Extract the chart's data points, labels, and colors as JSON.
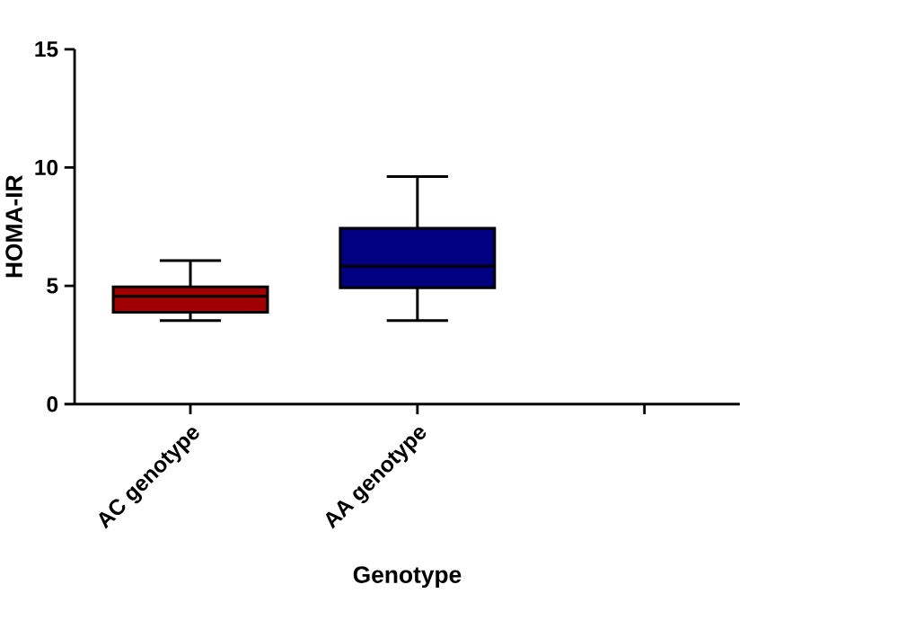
{
  "chart_data": {
    "type": "box",
    "xlabel": "Genotype",
    "ylabel": "HOMA-IR",
    "categories": [
      "AC genotype",
      "AA genotype",
      null
    ],
    "boxes": [
      {
        "low": 3.53,
        "q1": 3.88,
        "median": 4.56,
        "q3": 4.96,
        "high": 6.07
      },
      {
        "low": 3.53,
        "q1": 4.92,
        "median": 5.83,
        "q3": 7.43,
        "high": 9.62
      },
      null
    ],
    "colors": [
      "#a00000",
      "#000080",
      null
    ],
    "ylim": [
      0,
      15
    ],
    "yticks": [
      0,
      5,
      10,
      15
    ]
  }
}
